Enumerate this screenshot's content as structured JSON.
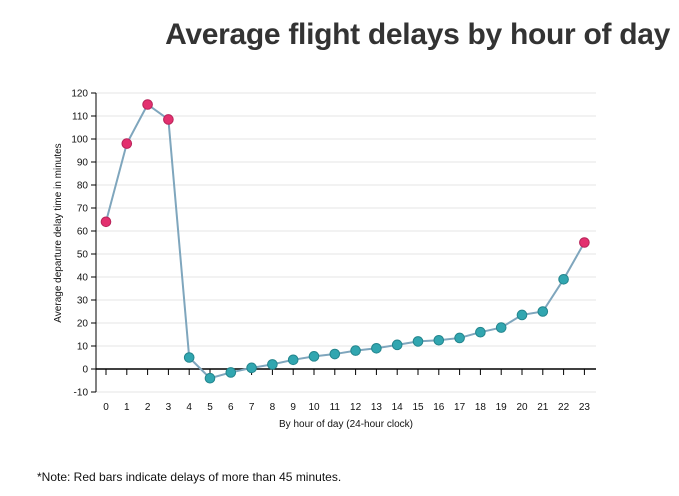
{
  "title": "Average flight delays by hour of day",
  "note": "*Note: Red bars indicate delays of more than 45 minutes.",
  "chart_data": {
    "type": "line",
    "title": "Average flight delays by hour of day",
    "xlabel": "By hour of day (24-hour clock)",
    "ylabel": "Average departure delay time in minutes",
    "ylim": [
      -10,
      120
    ],
    "yticks": [
      -10,
      0,
      10,
      20,
      30,
      40,
      50,
      60,
      70,
      80,
      90,
      100,
      110,
      120
    ],
    "grid": true,
    "threshold": 45,
    "x": [
      0,
      1,
      2,
      3,
      4,
      5,
      6,
      7,
      8,
      9,
      10,
      11,
      12,
      13,
      14,
      15,
      16,
      17,
      18,
      19,
      20,
      21,
      22,
      23
    ],
    "values": [
      64,
      98,
      115,
      108.5,
      5,
      -4,
      -1.5,
      0.5,
      2,
      4,
      5.5,
      6.5,
      8,
      9,
      10.5,
      12,
      12.5,
      13.5,
      16,
      18,
      23.5,
      25,
      39,
      55
    ],
    "colors": {
      "line": "#7fa6bd",
      "high": "#e3306f",
      "normal": "#31a6b0",
      "grid": "#e6e6e6"
    }
  }
}
